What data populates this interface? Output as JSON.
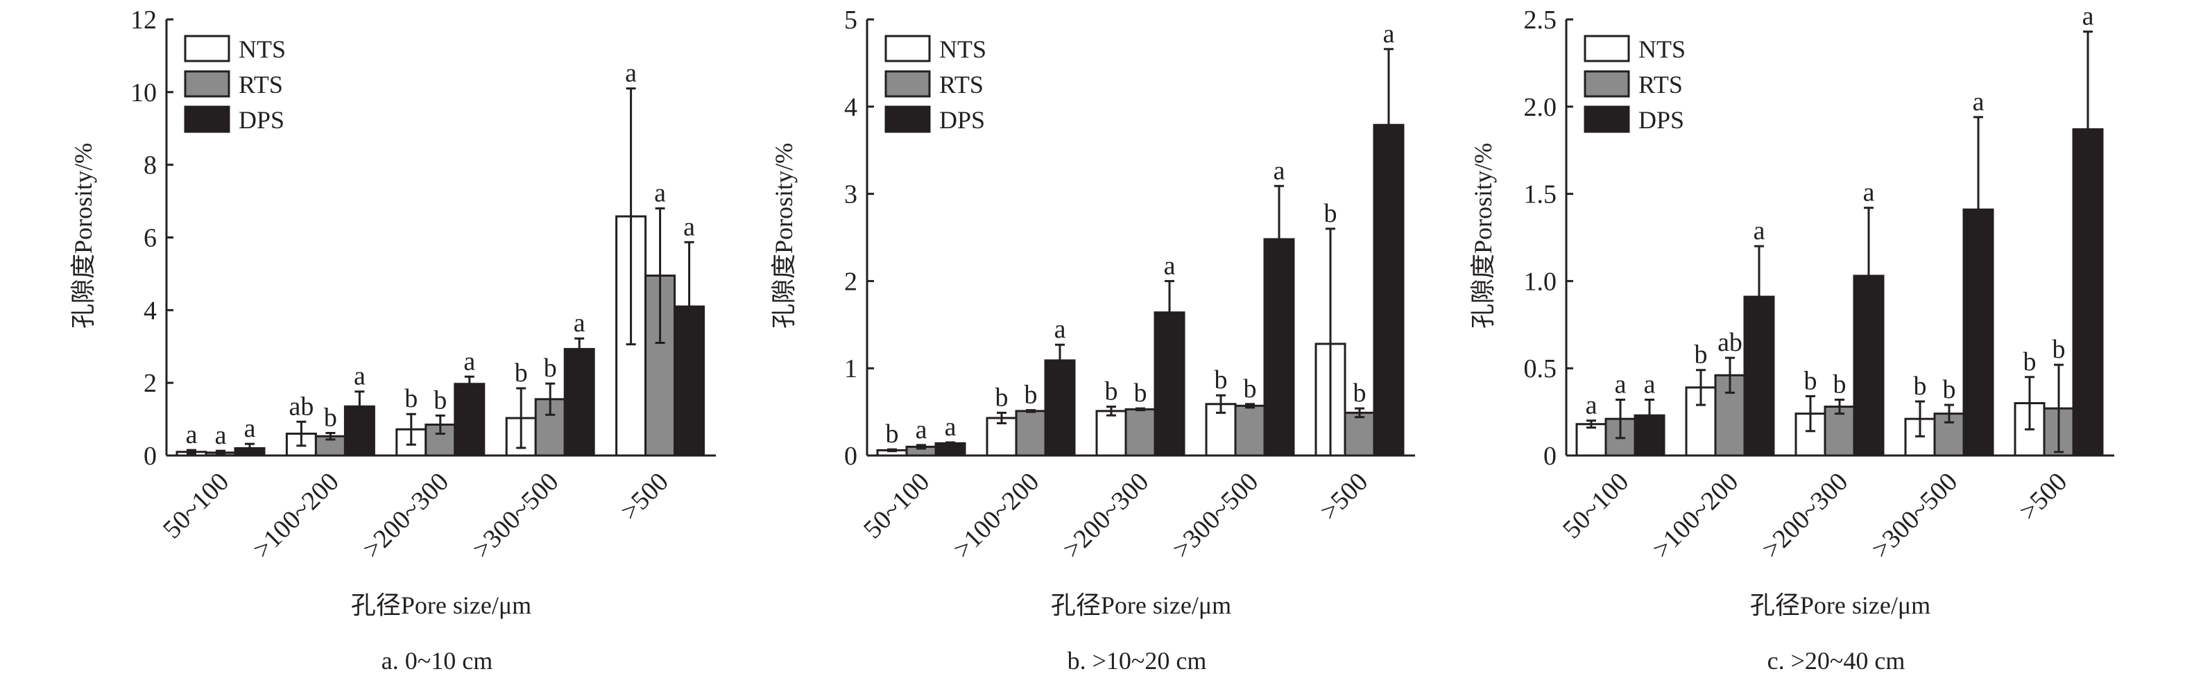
{
  "colors": {
    "NTS": "#ffffff",
    "RTS": "#8c8b8b",
    "DPS": "#231f20",
    "stroke": "#231f20"
  },
  "chart_data": [
    {
      "type": "bar",
      "title": "a. 0~10 cm",
      "xlabel": "孔径Pore size/μm",
      "ylabel": "孔隙度Porosity/%",
      "ylim": [
        0,
        12
      ],
      "yticks": [
        "0",
        "2",
        "4",
        "6",
        "8",
        "10",
        "12"
      ],
      "ytick_values": [
        0,
        2,
        4,
        6,
        8,
        10,
        12
      ],
      "legend_position": "top-left",
      "categories": [
        "50~100",
        ">100~200",
        ">200~300",
        ">300~500",
        ">500"
      ],
      "series": [
        {
          "name": "NTS",
          "values": [
            0.1,
            0.6,
            0.72,
            1.03,
            6.58
          ],
          "errors": [
            0.05,
            0.33,
            0.42,
            0.82,
            3.52
          ],
          "letters": [
            "a",
            "ab",
            "b",
            "b",
            "a"
          ]
        },
        {
          "name": "RTS",
          "values": [
            0.08,
            0.53,
            0.85,
            1.55,
            4.95
          ],
          "errors": [
            0.05,
            0.09,
            0.25,
            0.43,
            1.85
          ],
          "letters": [
            "a",
            "b",
            "b",
            "b",
            "a"
          ]
        },
        {
          "name": "DPS",
          "values": [
            0.2,
            1.35,
            1.97,
            2.93,
            4.1
          ],
          "errors": [
            0.12,
            0.41,
            0.2,
            0.29,
            1.77
          ],
          "letters": [
            "a",
            "a",
            "a",
            "a",
            "a"
          ]
        }
      ]
    },
    {
      "type": "bar",
      "title": "b. >10~20 cm",
      "xlabel": "孔径Pore size/μm",
      "ylabel": "孔隙度Porosity/%",
      "ylim": [
        0,
        5
      ],
      "yticks": [
        "0",
        "1",
        "2",
        "3",
        "4",
        "5"
      ],
      "ytick_values": [
        0,
        1,
        2,
        3,
        4,
        5
      ],
      "legend_position": "top-left",
      "categories": [
        "50~100",
        ">100~200",
        ">200~300",
        ">300~500",
        ">500"
      ],
      "series": [
        {
          "name": "NTS",
          "values": [
            0.06,
            0.43,
            0.51,
            0.59,
            1.28
          ],
          "errors": [
            0.01,
            0.06,
            0.05,
            0.1,
            1.32
          ],
          "letters": [
            "b",
            "b",
            "b",
            "b",
            "b"
          ]
        },
        {
          "name": "RTS",
          "values": [
            0.1,
            0.51,
            0.53,
            0.57,
            0.49
          ],
          "errors": [
            0.02,
            0.01,
            0.01,
            0.02,
            0.05
          ],
          "letters": [
            "a",
            "b",
            "b",
            "b",
            "b"
          ]
        },
        {
          "name": "DPS",
          "values": [
            0.14,
            1.09,
            1.64,
            2.48,
            3.79
          ],
          "errors": [
            0.01,
            0.18,
            0.36,
            0.61,
            0.87
          ],
          "letters": [
            "a",
            "a",
            "a",
            "a",
            "a"
          ]
        }
      ]
    },
    {
      "type": "bar",
      "title": "c. >20~40 cm",
      "xlabel": "孔径Pore size/μm",
      "ylabel": "孔隙度Porosity/%",
      "ylim": [
        0,
        2.5
      ],
      "yticks": [
        "0",
        "0.5",
        "1.0",
        "1.5",
        "2.0",
        "2.5"
      ],
      "ytick_values": [
        0,
        0.5,
        1.0,
        1.5,
        2.0,
        2.5
      ],
      "legend_position": "top-left",
      "categories": [
        "50~100",
        ">100~200",
        ">200~300",
        ">300~500",
        ">500"
      ],
      "series": [
        {
          "name": "NTS",
          "values": [
            0.18,
            0.39,
            0.24,
            0.21,
            0.3
          ],
          "errors": [
            0.02,
            0.1,
            0.1,
            0.1,
            0.15
          ],
          "letters": [
            "a",
            "b",
            "b",
            "b",
            "b"
          ]
        },
        {
          "name": "RTS",
          "values": [
            0.21,
            0.46,
            0.28,
            0.24,
            0.27
          ],
          "errors": [
            0.11,
            0.1,
            0.04,
            0.05,
            0.25
          ],
          "letters": [
            "a",
            "ab",
            "b",
            "b",
            "b"
          ]
        },
        {
          "name": "DPS",
          "values": [
            0.23,
            0.91,
            1.03,
            1.41,
            1.87
          ],
          "errors": [
            0.09,
            0.29,
            0.39,
            0.53,
            0.56
          ],
          "letters": [
            "a",
            "a",
            "a",
            "a",
            "a"
          ]
        }
      ]
    }
  ]
}
